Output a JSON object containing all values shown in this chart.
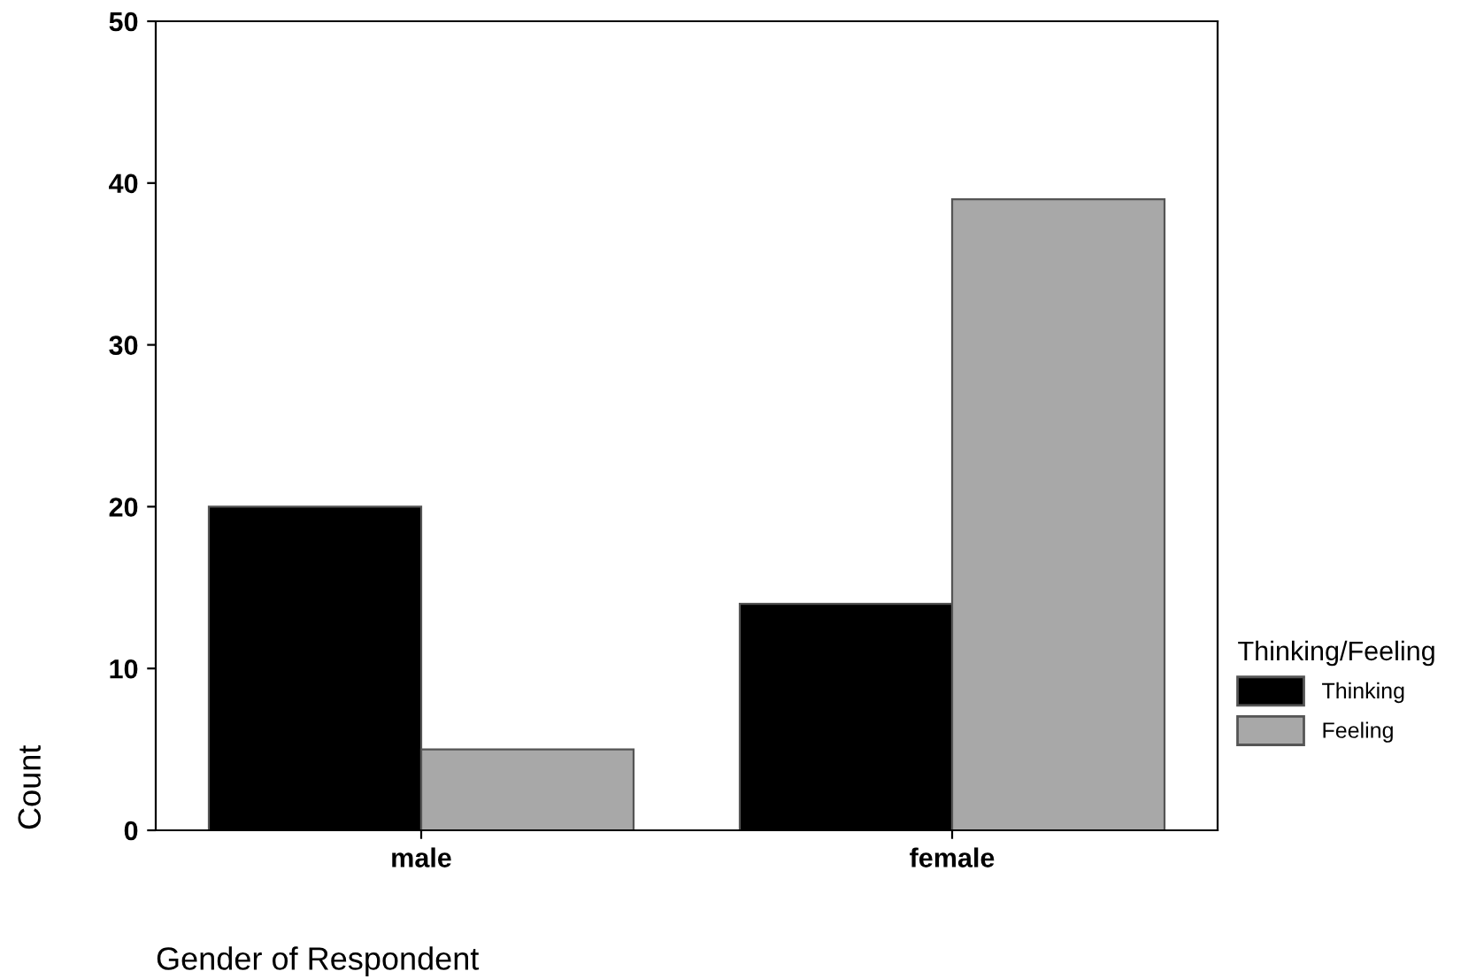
{
  "chart_data": {
    "type": "bar",
    "xlabel": "Gender of Respondent",
    "ylabel": "Count",
    "legend_title": "Thinking/Feeling",
    "categories": [
      "male",
      "female"
    ],
    "series": [
      {
        "name": "Thinking",
        "color": "#000000",
        "values": [
          20,
          14
        ]
      },
      {
        "name": "Feeling",
        "color": "#a8a8a8",
        "values": [
          5,
          39
        ]
      }
    ],
    "ylim": [
      0,
      50
    ],
    "yticks": [
      0,
      10,
      20,
      30,
      40,
      50
    ],
    "grid": false,
    "legend": "right"
  }
}
